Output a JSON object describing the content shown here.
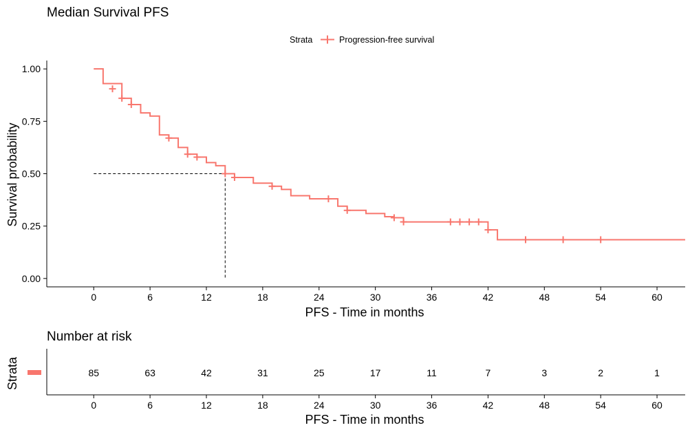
{
  "chart_data": [
    {
      "type": "line",
      "title": "Median Survival PFS",
      "xlabel": "PFS - Time in months",
      "ylabel": "Survival probability",
      "xlim": [
        -5,
        63
      ],
      "ylim": [
        -0.04,
        1.04
      ],
      "xticks": [
        0,
        6,
        12,
        18,
        24,
        30,
        36,
        42,
        48,
        54,
        60
      ],
      "yticks": [
        "0.00",
        "0.25",
        "0.50",
        "0.75",
        "1.00"
      ],
      "grid": false,
      "legend": {
        "position": "top",
        "title": "Strata",
        "entries": [
          "Progression-free survival"
        ]
      },
      "color": "#F8766D",
      "median": {
        "x": 14,
        "y": 0.5
      },
      "series": [
        {
          "name": "Progression-free survival",
          "step": [
            [
              0,
              1.0
            ],
            [
              1,
              0.93
            ],
            [
              3,
              0.86
            ],
            [
              4,
              0.83
            ],
            [
              5,
              0.79
            ],
            [
              6,
              0.775
            ],
            [
              7,
              0.685
            ],
            [
              8,
              0.67
            ],
            [
              9,
              0.625
            ],
            [
              10,
              0.593
            ],
            [
              11,
              0.579
            ],
            [
              12,
              0.553
            ],
            [
              13,
              0.538
            ],
            [
              14,
              0.5
            ],
            [
              15,
              0.482
            ],
            [
              17,
              0.455
            ],
            [
              19,
              0.44
            ],
            [
              20,
              0.425
            ],
            [
              21,
              0.395
            ],
            [
              23,
              0.38
            ],
            [
              26,
              0.345
            ],
            [
              27,
              0.325
            ],
            [
              29,
              0.31
            ],
            [
              31,
              0.295
            ],
            [
              32,
              0.29
            ],
            [
              33,
              0.27
            ],
            [
              42,
              0.232
            ],
            [
              43,
              0.185
            ],
            [
              63,
              0.185
            ]
          ],
          "censored": [
            [
              2,
              0.905
            ],
            [
              3,
              0.86
            ],
            [
              4,
              0.83
            ],
            [
              8,
              0.67
            ],
            [
              10,
              0.593
            ],
            [
              11,
              0.579
            ],
            [
              14,
              0.5
            ],
            [
              15,
              0.482
            ],
            [
              19,
              0.44
            ],
            [
              25,
              0.38
            ],
            [
              27,
              0.325
            ],
            [
              32,
              0.29
            ],
            [
              33,
              0.27
            ],
            [
              38,
              0.27
            ],
            [
              39,
              0.27
            ],
            [
              40,
              0.27
            ],
            [
              41,
              0.27
            ],
            [
              42,
              0.232
            ],
            [
              46,
              0.185
            ],
            [
              50,
              0.185
            ],
            [
              54,
              0.185
            ]
          ]
        }
      ]
    },
    {
      "type": "table",
      "title": "Number at risk",
      "xlabel": "PFS - Time in months",
      "ylabel": "Strata",
      "x": [
        0,
        6,
        12,
        18,
        24,
        30,
        36,
        42,
        48,
        54,
        60
      ],
      "values": [
        85,
        63,
        42,
        31,
        25,
        17,
        11,
        7,
        3,
        2,
        1
      ],
      "color": "#F8766D"
    }
  ]
}
